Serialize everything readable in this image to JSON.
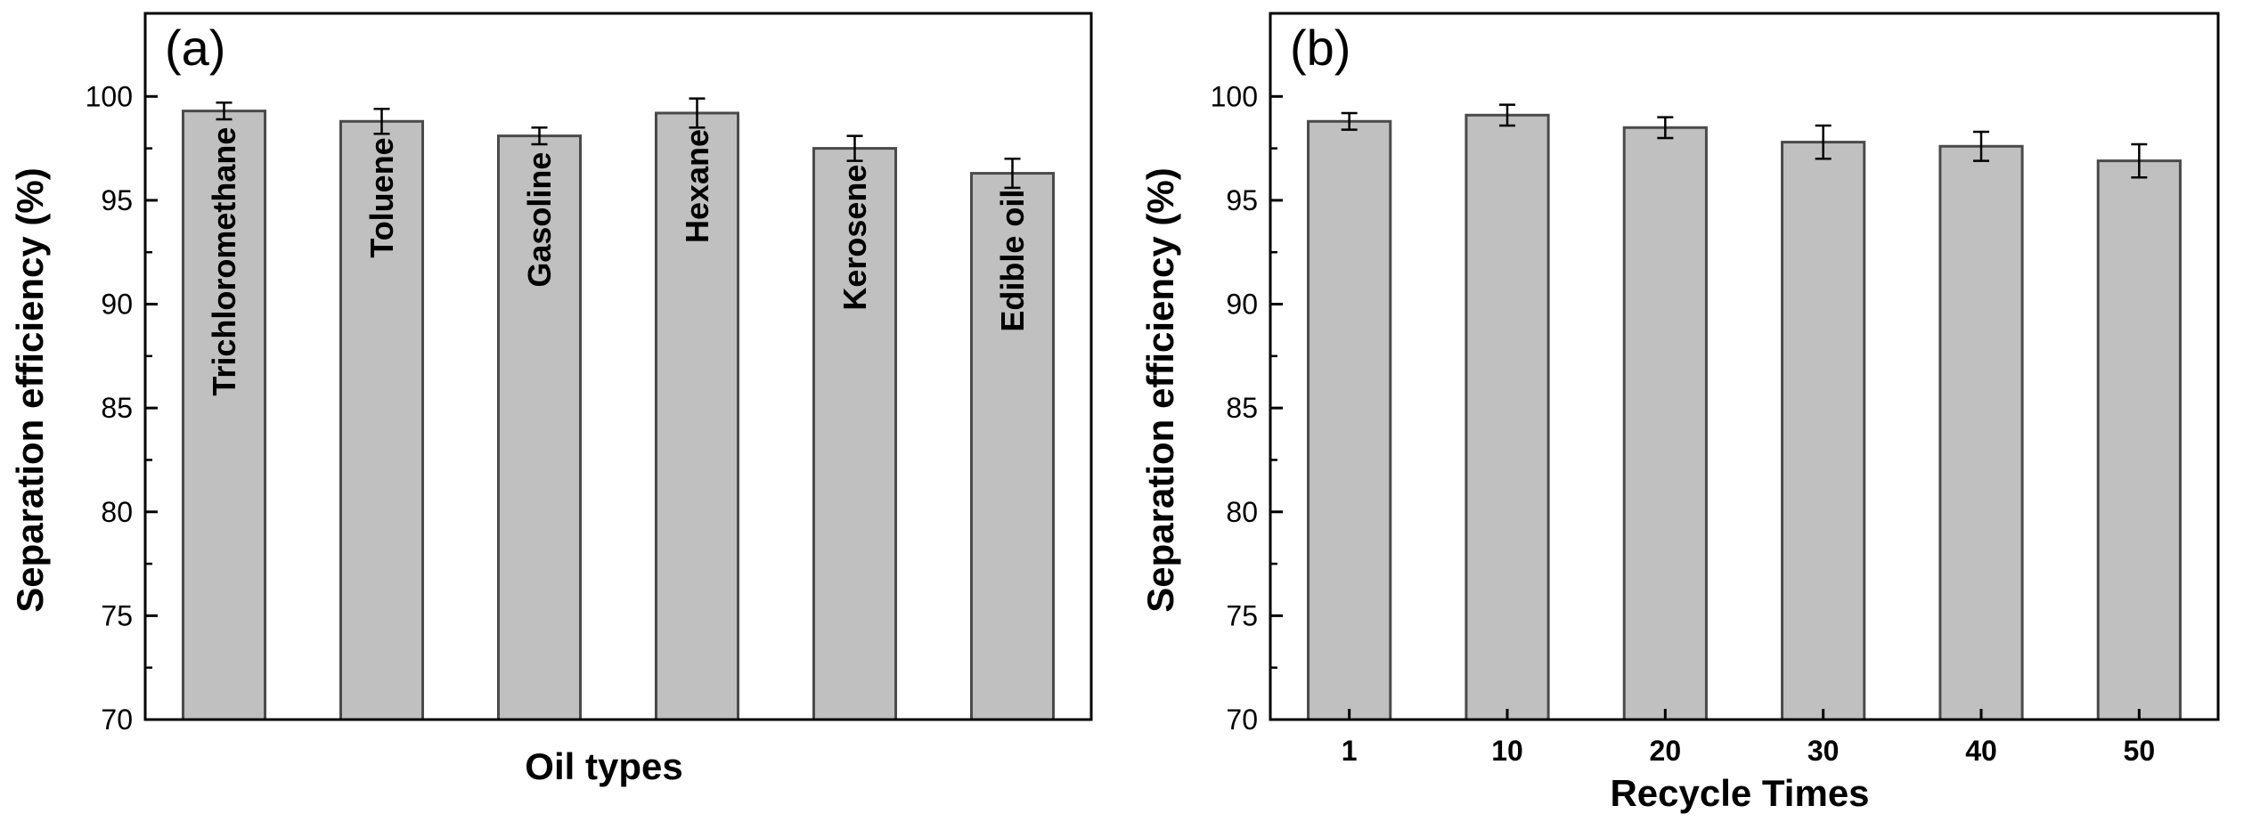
{
  "colors": {
    "bar_fill": "#c0c0c0",
    "bar_stroke": "#4a4a4a",
    "axis": "#000000",
    "background": "#ffffff"
  },
  "chart_data": [
    {
      "type": "bar",
      "panel_label": "(a)",
      "categories": [
        "Trichloromethane",
        "Toluene",
        "Gasoline",
        "Hexane",
        "Kerosene",
        "Edible oil"
      ],
      "values": [
        99.3,
        98.8,
        98.1,
        99.2,
        97.5,
        96.3
      ],
      "errors": [
        0.4,
        0.6,
        0.4,
        0.7,
        0.6,
        0.7
      ],
      "category_labels_inside_bars": true,
      "xlabel": "Oil types",
      "ylabel": "Separation efficiency (%)",
      "ylim": [
        70,
        104
      ],
      "yticks": [
        70,
        75,
        80,
        85,
        90,
        95,
        100
      ],
      "grid": false,
      "legend": "none"
    },
    {
      "type": "bar",
      "panel_label": "(b)",
      "categories": [
        "1",
        "10",
        "20",
        "30",
        "40",
        "50"
      ],
      "values": [
        98.8,
        99.1,
        98.5,
        97.8,
        97.6,
        96.9
      ],
      "errors": [
        0.4,
        0.5,
        0.5,
        0.8,
        0.7,
        0.8
      ],
      "category_labels_inside_bars": false,
      "xlabel": "Recycle Times",
      "ylabel": "Separation efficiency (%)",
      "ylim": [
        70,
        104
      ],
      "yticks": [
        70,
        75,
        80,
        85,
        90,
        95,
        100
      ],
      "grid": false,
      "legend": "none"
    }
  ]
}
